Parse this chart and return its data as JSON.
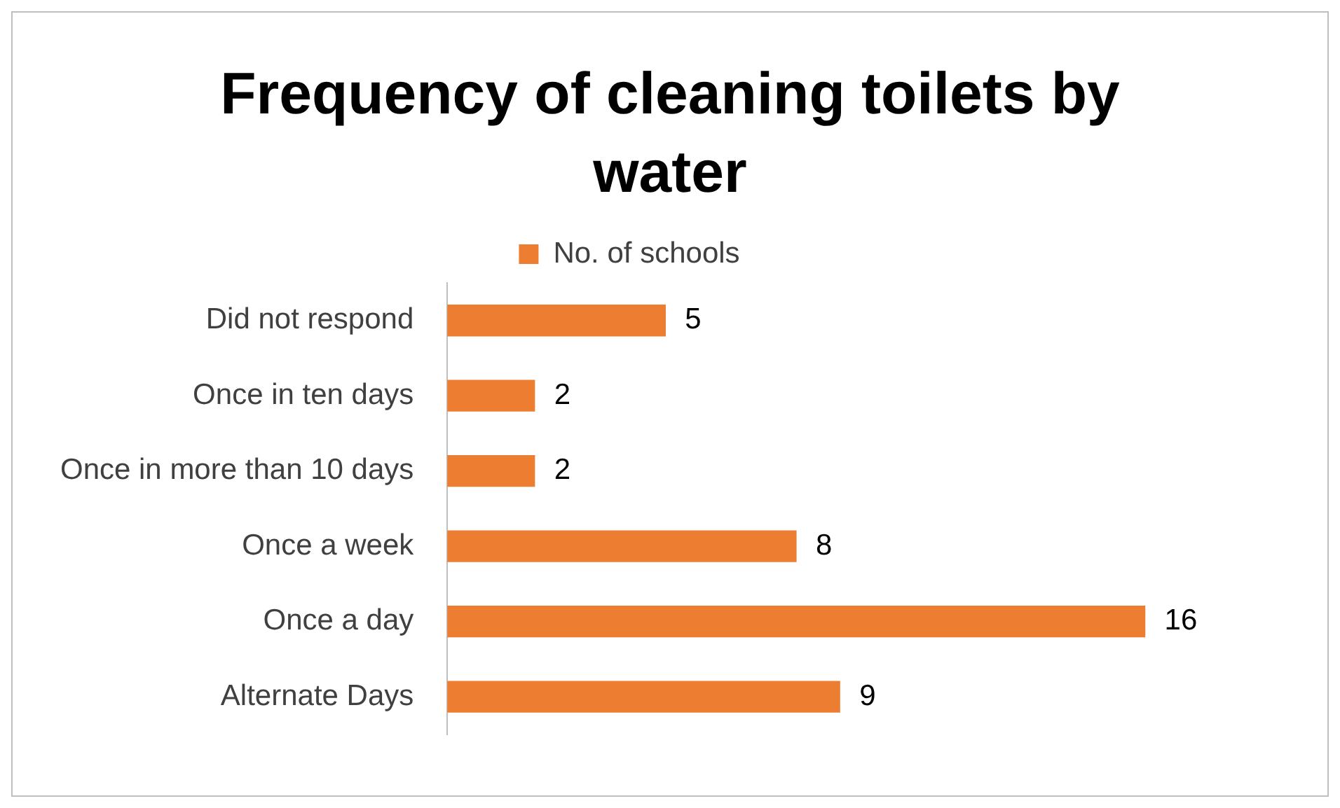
{
  "chart_data": {
    "type": "bar",
    "title": "Frequency of cleaning toilets by water",
    "orientation": "horizontal",
    "categories": [
      "Did not respond",
      "Once in ten days",
      "Once in more than 10 days",
      "Once a week",
      "Once a day",
      "Alternate Days"
    ],
    "series": [
      {
        "name": "No. of schools",
        "color": "#ed7d31",
        "values": [
          5,
          2,
          2,
          8,
          16,
          9
        ]
      }
    ],
    "data_labels": true,
    "legend": "top",
    "tick_labels": "y"
  }
}
